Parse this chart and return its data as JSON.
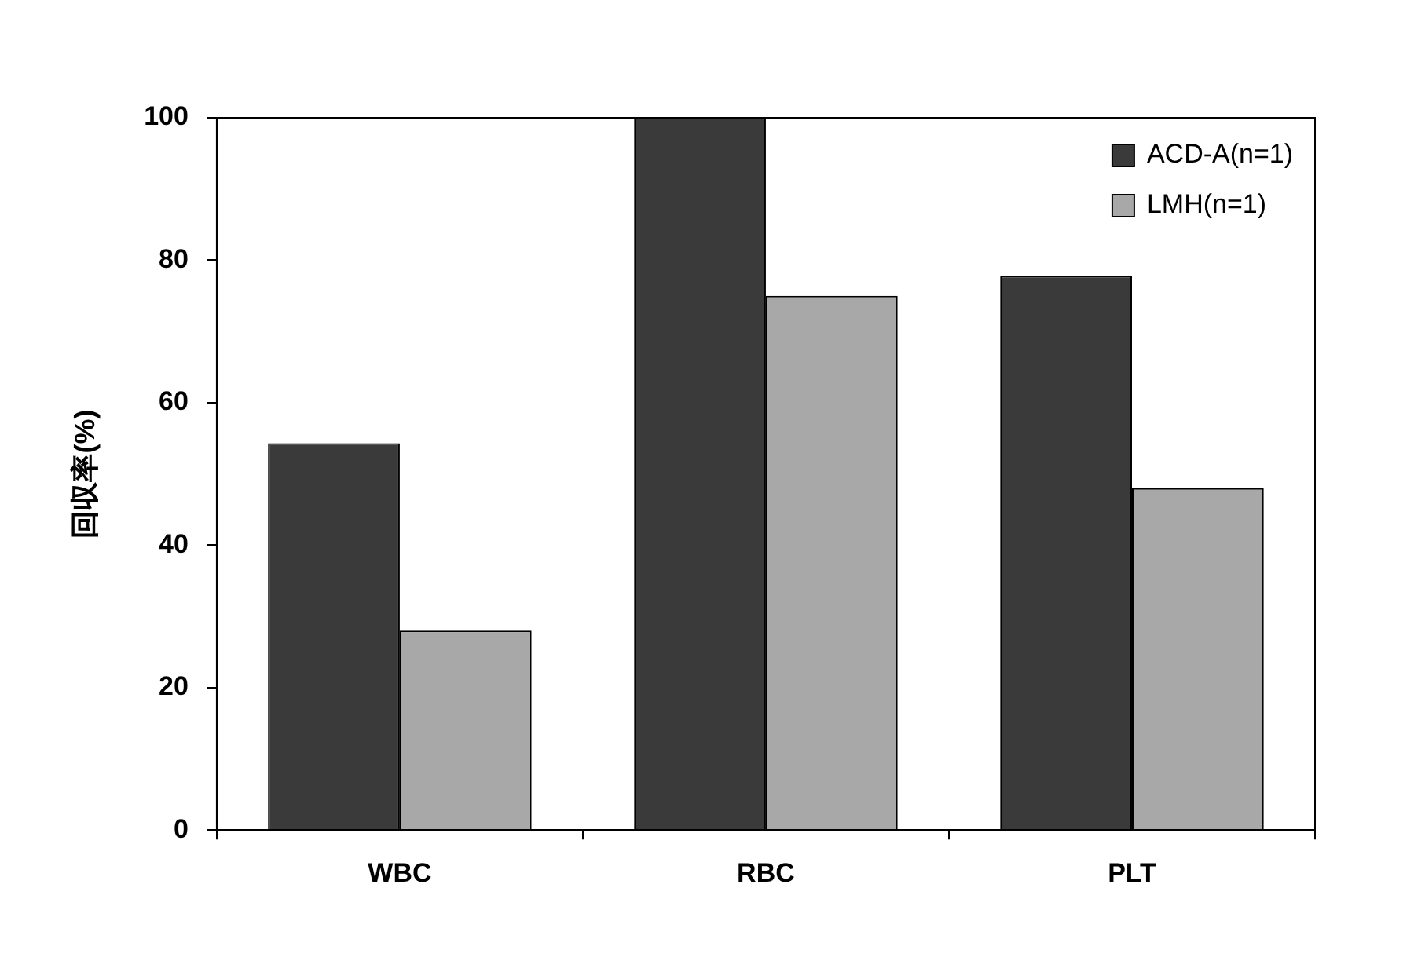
{
  "chart_data": {
    "type": "bar",
    "ylabel": "回収率(%)",
    "categories": [
      "WBC",
      "RBC",
      "PLT"
    ],
    "series": [
      {
        "name": "ACD-A(n=1)",
        "color": "#3a3a3a",
        "values": [
          54.3,
          100,
          77.8
        ]
      },
      {
        "name": "LMH(n=1)",
        "color": "#a8a8a8",
        "values": [
          28,
          75,
          48
        ]
      }
    ],
    "ylim": [
      0,
      100
    ],
    "yticks": [
      0,
      20,
      40,
      60,
      80,
      100
    ],
    "grid": false,
    "legend": "top right"
  }
}
